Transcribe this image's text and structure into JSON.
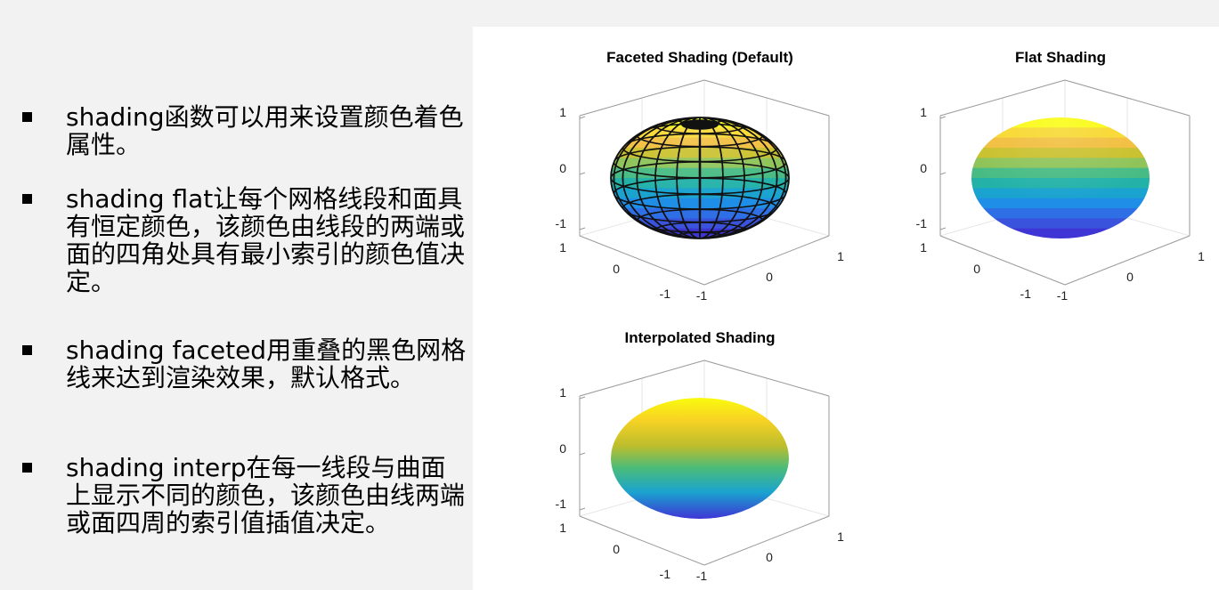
{
  "bullets": [
    {
      "text": "shading函数可以用来设置颜色着色属性。"
    },
    {
      "text": "shading flat让每个网格线段和面具有恒定颜色，该颜色由线段的两端或面的四角处具有最小索引的颜色值决定。"
    },
    {
      "text": "shading faceted用重叠的黑色网格线来达到渲染效果，默认格式。"
    },
    {
      "text": "shading interp在每一线段与曲面上显示不同的颜色，该颜色由线两端或面四周的索引值插值决定。"
    }
  ],
  "plots": [
    {
      "title": "Faceted Shading (Default)",
      "shading": "faceted"
    },
    {
      "title": "Flat Shading",
      "shading": "flat"
    },
    {
      "title": "Interpolated Shading",
      "shading": "interp"
    }
  ],
  "axis_ticks": {
    "z": [
      "1",
      "0",
      "-1"
    ],
    "y": [
      "1",
      "0",
      "-1"
    ],
    "x": [
      "-1",
      "0",
      "1"
    ]
  },
  "colors": {
    "parula_top": "#f9fb0e",
    "parula_upper": "#f4bc3a",
    "parula_mid": "#27b99e",
    "parula_lower": "#1a9fd8",
    "parula_bottom": "#3f35d4"
  }
}
